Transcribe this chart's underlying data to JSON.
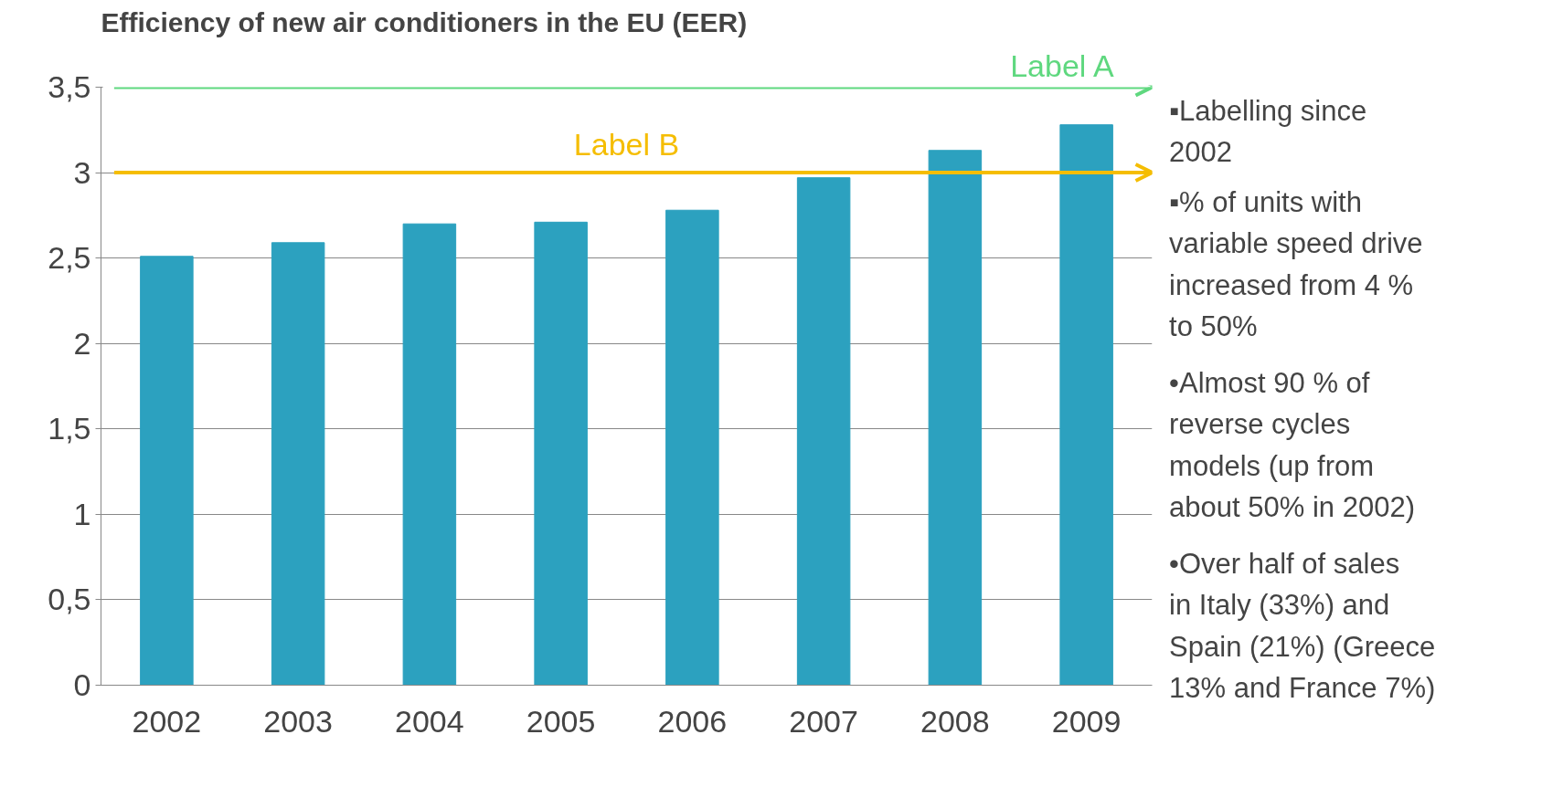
{
  "chart_data": {
    "type": "bar",
    "title": "Efficiency of new air conditioners in the EU (EER)",
    "categories": [
      "2002",
      "2003",
      "2004",
      "2005",
      "2006",
      "2007",
      "2008",
      "2009"
    ],
    "values": [
      2.51,
      2.59,
      2.7,
      2.71,
      2.78,
      2.97,
      3.13,
      3.28
    ],
    "color": "#2ca1bf",
    "ylim": [
      0,
      3.5
    ],
    "yticks": [
      0,
      {
        "value": 0.5,
        "label": "0,5"
      },
      1,
      {
        "value": 1.5,
        "label": "1,5"
      },
      2,
      {
        "value": 2.5,
        "label": "2,5"
      },
      3,
      {
        "value": 3.5,
        "label": "3,5"
      }
    ],
    "grid": "y",
    "ref_lines": [
      {
        "axis": "y",
        "value": 3.5,
        "label": "Label A",
        "color": "#5fd87f"
      },
      {
        "axis": "y",
        "value": 3,
        "label": "Label B",
        "color": "#f5bd00"
      }
    ],
    "annotations": [
      "▪Labelling since 2002",
      "▪% of units with variable speed drive increased from  4 % to 50%",
      "•Almost 90 % of reverse cycles models (up from about 50% in 2002)",
      "•Over half of sales in Italy (33%) and Spain (21%) (Greece 13% and France 7%)"
    ]
  }
}
